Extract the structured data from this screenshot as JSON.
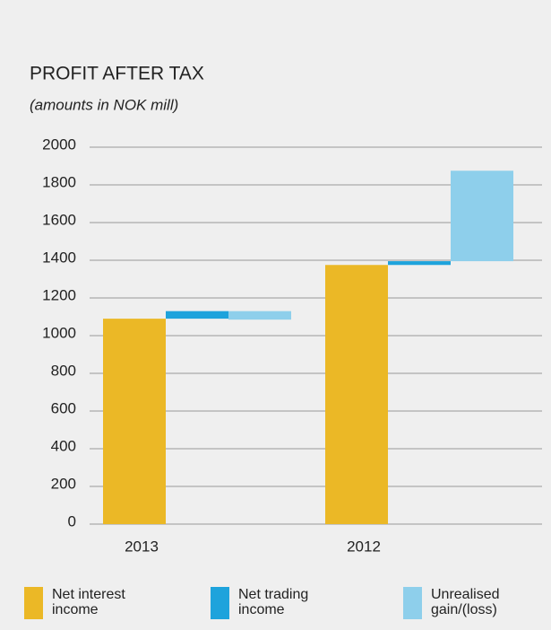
{
  "chart_data": {
    "type": "waterfall",
    "title": "PROFIT AFTER TAX",
    "subtitle": "(amounts in NOK mill)",
    "categories": [
      "2013",
      "2012"
    ],
    "series": [
      {
        "name": "Net interest income",
        "color": "#ebb826",
        "values": [
          1090,
          1375
        ]
      },
      {
        "name": "Net trading income",
        "color": "#1ea3dc",
        "values": [
          40,
          20
        ]
      },
      {
        "name": "Unrealised gain/(loss)",
        "color": "#8ecfeb",
        "values": [
          -45,
          480
        ]
      }
    ],
    "ylim": [
      0,
      2000
    ],
    "yticks": [
      0,
      200,
      400,
      600,
      800,
      1000,
      1200,
      1400,
      1600,
      1800,
      2000
    ],
    "grid": true
  }
}
